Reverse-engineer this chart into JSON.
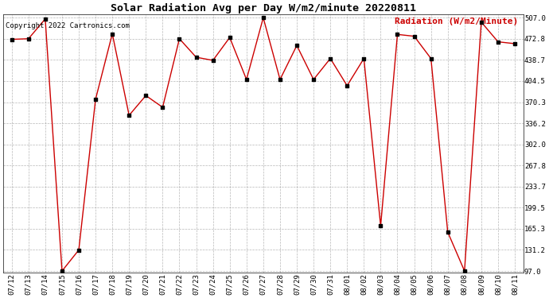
{
  "title": "Solar Radiation Avg per Day W/m2/minute 20220811",
  "copyright_text": "Copyright 2022 Cartronics.com",
  "legend_label": "Radiation (W/m2/Minute)",
  "dates": [
    "07/12",
    "07/13",
    "07/14",
    "07/15",
    "07/16",
    "07/17",
    "07/18",
    "07/19",
    "07/20",
    "07/21",
    "07/22",
    "07/23",
    "07/24",
    "07/25",
    "07/26",
    "07/27",
    "07/28",
    "07/29",
    "07/30",
    "07/31",
    "08/01",
    "08/02",
    "08/03",
    "08/04",
    "08/05",
    "08/06",
    "08/07",
    "08/08",
    "08/09",
    "08/10",
    "08/11"
  ],
  "values": [
    472,
    473,
    505,
    97,
    131,
    375,
    481,
    349,
    381,
    362,
    473,
    443,
    438,
    475,
    407,
    507,
    407,
    462,
    407,
    441,
    397,
    441,
    170,
    480,
    477,
    441,
    160,
    97,
    500,
    468,
    465
  ],
  "line_color": "#cc0000",
  "marker_color": "#000000",
  "background_color": "#ffffff",
  "grid_color": "#999999",
  "title_color": "#000000",
  "copyright_color": "#000000",
  "legend_color": "#cc0000",
  "yticks": [
    97.0,
    131.2,
    165.3,
    199.5,
    233.7,
    267.8,
    302.0,
    336.2,
    370.3,
    404.5,
    438.7,
    472.8,
    507.0
  ],
  "ymin": 97.0,
  "ymax": 507.0,
  "title_fontsize": 9.5,
  "axis_fontsize": 6.5,
  "copyright_fontsize": 6.5,
  "legend_fontsize": 8,
  "figwidth": 6.9,
  "figheight": 3.75,
  "dpi": 100
}
